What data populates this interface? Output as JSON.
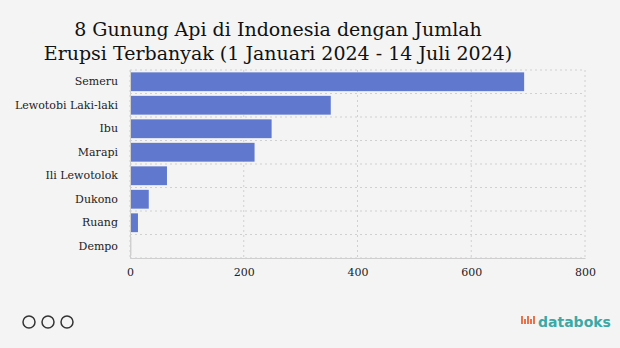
{
  "chart_data": {
    "type": "bar",
    "orientation": "horizontal",
    "title": "8 Gunung Api di Indonesia dengan Jumlah Erupsi Terbanyak (1 Januari 2024 - 14 Juli 2024)",
    "categories": [
      "Semeru",
      "Lewotobi Laki-laki",
      "Ibu",
      "Marapi",
      "Ili Lewotolok",
      "Dukono",
      "Ruang",
      "Dempo"
    ],
    "values": [
      693,
      353,
      249,
      219,
      65,
      33,
      14,
      2
    ],
    "color": "#6079cf",
    "xlim": [
      0,
      800
    ],
    "xticks": [
      0,
      200,
      400,
      600,
      800
    ],
    "grid": true,
    "source": "databoks"
  }
}
